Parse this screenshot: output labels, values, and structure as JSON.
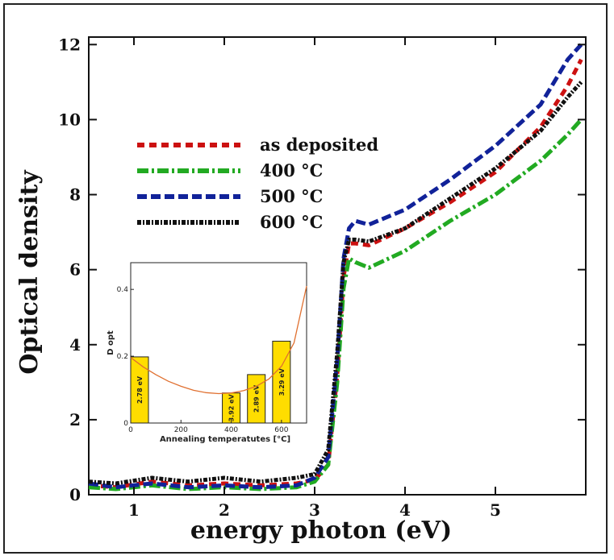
{
  "chart_data": [
    {
      "type": "line",
      "xlabel": "energy photon (eV)",
      "ylabel": "Optical density",
      "xlim": [
        0.5,
        6.0
      ],
      "ylim": [
        0,
        12.2
      ],
      "xticks": [
        1,
        2,
        3,
        4,
        5
      ],
      "yticks": [
        0,
        2,
        4,
        6,
        8,
        10,
        12
      ],
      "legend_position": "upper-left",
      "series": [
        {
          "name": "as deposited",
          "color": "#cc1111",
          "dash": "9,6",
          "x": [
            0.5,
            0.8,
            1.2,
            1.6,
            2.0,
            2.4,
            2.8,
            3.0,
            3.15,
            3.25,
            3.32,
            3.38,
            3.45,
            3.6,
            4.0,
            4.5,
            5.0,
            5.5,
            5.8,
            5.95
          ],
          "y": [
            0.25,
            0.2,
            0.35,
            0.25,
            0.3,
            0.25,
            0.3,
            0.4,
            0.8,
            3.2,
            5.8,
            6.7,
            6.7,
            6.65,
            7.1,
            7.8,
            8.6,
            9.8,
            10.9,
            11.6
          ]
        },
        {
          "name": "400 °C",
          "color": "#22aa22",
          "dash": "14,4,3,4",
          "x": [
            0.5,
            0.8,
            1.2,
            1.6,
            2.0,
            2.4,
            2.8,
            3.0,
            3.15,
            3.25,
            3.32,
            3.38,
            3.45,
            3.6,
            4.0,
            4.5,
            5.0,
            5.5,
            5.8,
            5.95
          ],
          "y": [
            0.2,
            0.15,
            0.25,
            0.15,
            0.2,
            0.15,
            0.2,
            0.35,
            0.8,
            3.0,
            5.5,
            6.3,
            6.2,
            6.05,
            6.5,
            7.3,
            8.0,
            8.9,
            9.6,
            10.0
          ]
        },
        {
          "name": "500 °C",
          "color": "#112299",
          "dash": "12,5",
          "x": [
            0.5,
            0.8,
            1.2,
            1.6,
            2.0,
            2.4,
            2.8,
            3.0,
            3.15,
            3.25,
            3.32,
            3.38,
            3.45,
            3.6,
            4.0,
            4.5,
            5.0,
            5.5,
            5.8,
            5.95
          ],
          "y": [
            0.3,
            0.2,
            0.3,
            0.2,
            0.25,
            0.2,
            0.25,
            0.45,
            1.0,
            3.6,
            6.3,
            7.1,
            7.3,
            7.2,
            7.6,
            8.4,
            9.3,
            10.4,
            11.6,
            12.0
          ]
        },
        {
          "name": "600 °C",
          "color": "#111111",
          "dash": "5,2,2,2",
          "x": [
            0.5,
            0.8,
            1.2,
            1.6,
            2.0,
            2.4,
            2.8,
            3.0,
            3.15,
            3.25,
            3.32,
            3.38,
            3.45,
            3.6,
            4.0,
            4.5,
            5.0,
            5.5,
            5.8,
            5.95
          ],
          "y": [
            0.35,
            0.3,
            0.45,
            0.35,
            0.45,
            0.35,
            0.45,
            0.55,
            1.2,
            3.8,
            6.2,
            6.8,
            6.8,
            6.75,
            7.1,
            7.9,
            8.7,
            9.7,
            10.6,
            11.0
          ]
        }
      ]
    },
    {
      "type": "bar",
      "xlabel": "Annealing temperatutes [°C]",
      "ylabel": "D opt",
      "xlim": [
        0,
        700
      ],
      "ylim": [
        0,
        0.48
      ],
      "xticks": [
        0,
        200,
        400,
        600
      ],
      "yticks": [
        0,
        0.2,
        0.4
      ],
      "ytick_labels": [
        "0",
        "0.2",
        "0.4"
      ],
      "bars": [
        {
          "x": 25,
          "value": 0.198,
          "label": "2.78 eV"
        },
        {
          "x": 400,
          "value": 0.09,
          "label": "3.92 eV"
        },
        {
          "x": 500,
          "value": 0.145,
          "label": "2.89 eV"
        },
        {
          "x": 600,
          "value": 0.245,
          "label": "3.29 eV"
        }
      ],
      "bar_color": "#ffdd00",
      "fit_curve": {
        "color": "#e07030",
        "x": [
          0,
          50,
          100,
          150,
          200,
          250,
          300,
          350,
          400,
          450,
          500,
          550,
          600,
          650,
          700
        ],
        "y": [
          0.196,
          0.168,
          0.145,
          0.125,
          0.11,
          0.098,
          0.091,
          0.088,
          0.09,
          0.097,
          0.11,
          0.132,
          0.17,
          0.24,
          0.41
        ]
      }
    }
  ]
}
